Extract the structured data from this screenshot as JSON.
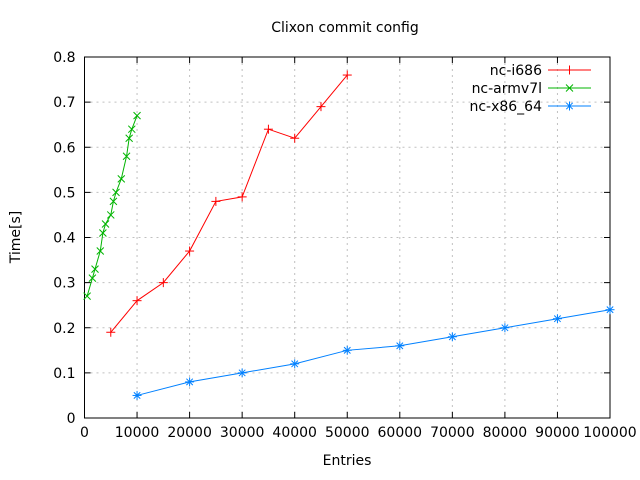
{
  "chart_data": {
    "type": "line",
    "title": "Clixon commit config",
    "xlabel": "Entries",
    "ylabel": "Time[s]",
    "xlim": [
      0,
      100000
    ],
    "ylim": [
      0,
      0.8
    ],
    "grid": true,
    "legend_position": "top-right-inside",
    "background_color": "#ffffff",
    "border_color": "#000000",
    "grid_color": "#c0c0c0",
    "xticks": {
      "values": [
        0,
        10000,
        20000,
        30000,
        40000,
        50000,
        60000,
        70000,
        80000,
        90000,
        100000
      ],
      "labels": [
        "0",
        "10000",
        "20000",
        "30000",
        "40000",
        "50000",
        "60000",
        "70000",
        "80000",
        "90000",
        "100000"
      ]
    },
    "yticks": {
      "values": [
        0,
        0.1,
        0.2,
        0.3,
        0.4,
        0.5,
        0.6,
        0.7,
        0.8
      ],
      "labels": [
        "0",
        "0.1",
        "0.2",
        "0.3",
        "0.4",
        "0.5",
        "0.6",
        "0.7",
        "0.8"
      ]
    },
    "series": [
      {
        "name": "nc-i686",
        "color": "#ff0000",
        "marker": "plus",
        "x": [
          5000,
          10000,
          15000,
          20000,
          25000,
          30000,
          35000,
          40000,
          45000,
          50000
        ],
        "y": [
          0.19,
          0.26,
          0.3,
          0.37,
          0.48,
          0.49,
          0.64,
          0.62,
          0.69,
          0.76
        ]
      },
      {
        "name": "nc-armv7l",
        "color": "#00b400",
        "marker": "cross",
        "x": [
          500,
          1500,
          2000,
          3000,
          3500,
          4000,
          5000,
          5500,
          6000,
          7000,
          8000,
          8500,
          9000,
          10000
        ],
        "y": [
          0.27,
          0.31,
          0.33,
          0.37,
          0.41,
          0.43,
          0.45,
          0.48,
          0.5,
          0.53,
          0.58,
          0.62,
          0.64,
          0.67
        ]
      },
      {
        "name": "nc-x86_64",
        "color": "#0080ff",
        "marker": "asterisk",
        "x": [
          10000,
          20000,
          30000,
          40000,
          50000,
          60000,
          70000,
          80000,
          90000,
          100000
        ],
        "y": [
          0.05,
          0.08,
          0.1,
          0.12,
          0.15,
          0.16,
          0.18,
          0.2,
          0.22,
          0.24
        ]
      }
    ]
  }
}
